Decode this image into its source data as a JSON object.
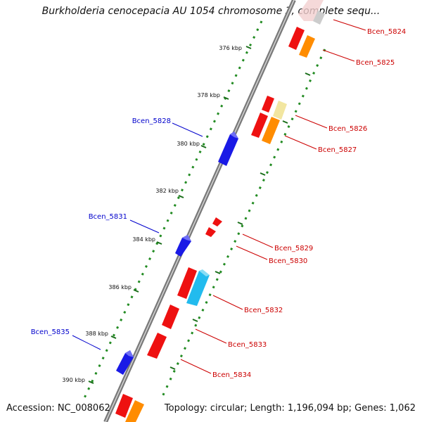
{
  "title": "Burkholderia cenocepacia AU 1054 chromosome 3, complete sequ...",
  "footer": {
    "accession": "Accession: NC_008062",
    "summary": "Topology: circular; Length: 1,196,094 bp; Genes: 1,062"
  },
  "colors": {
    "backbone": "#7a7a7a",
    "tick_line": "#228b22",
    "reverse_label": "#0000cc",
    "forward_label": "#cc0000",
    "blue_gene": "#1a1ae6",
    "red_gene": "#ee1111",
    "orange_gene": "#ff8c00",
    "cyan_gene": "#22bbee",
    "pale_gene": "#f2e6a0",
    "grey_gene": "#cccccc"
  },
  "scale_labels": [
    "376 kbp",
    "378 kbp",
    "380 kbp",
    "382 kbp",
    "384 kbp",
    "386 kbp",
    "388 kbp",
    "390 kbp"
  ],
  "gene_labels_reverse": [
    "Bcen_5828",
    "Bcen_5831",
    "Bcen_5835"
  ],
  "gene_labels_forward": [
    "Bcen_5824",
    "Bcen_5825",
    "Bcen_5826",
    "Bcen_5827",
    "Bcen_5829",
    "Bcen_5830",
    "Bcen_5832",
    "Bcen_5833",
    "Bcen_5834"
  ]
}
